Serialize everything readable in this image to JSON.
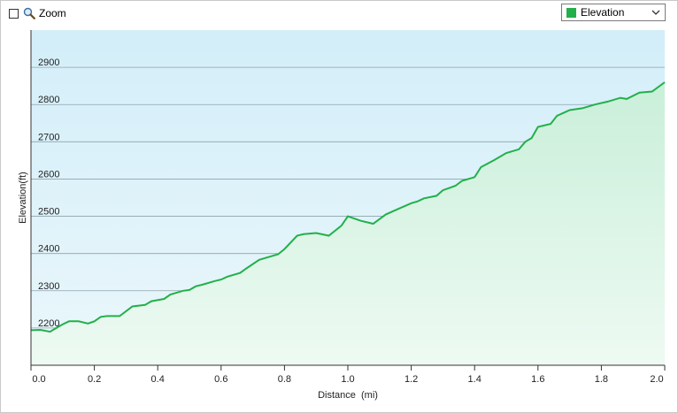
{
  "toolbar": {
    "zoom_label": "Zoom",
    "zoom_checked": false,
    "series_select_value": "Elevation",
    "series_color": "#22b04a"
  },
  "chart_data": {
    "type": "area",
    "xlabel": "Distance  (mi)",
    "ylabel": "Elevation(ft)",
    "xlim": [
      0.0,
      2.0
    ],
    "ylim": [
      2100,
      3000
    ],
    "x_ticks": [
      "0.0",
      "0.2",
      "0.4",
      "0.6",
      "0.8",
      "1.0",
      "1.2",
      "1.4",
      "1.6",
      "1.8",
      "2.0"
    ],
    "y_ticks": [
      "2200",
      "2300",
      "2400",
      "2500",
      "2600",
      "2700",
      "2800",
      "2900"
    ],
    "grid": "horizontal",
    "line_color": "#22b04a",
    "series": [
      {
        "name": "Elevation",
        "x": [
          0.0,
          0.03,
          0.06,
          0.08,
          0.1,
          0.12,
          0.15,
          0.18,
          0.2,
          0.22,
          0.24,
          0.28,
          0.32,
          0.36,
          0.38,
          0.42,
          0.44,
          0.48,
          0.5,
          0.52,
          0.54,
          0.58,
          0.6,
          0.62,
          0.66,
          0.68,
          0.72,
          0.74,
          0.78,
          0.8,
          0.84,
          0.86,
          0.9,
          0.94,
          0.98,
          1.0,
          1.04,
          1.08,
          1.12,
          1.16,
          1.2,
          1.22,
          1.24,
          1.28,
          1.3,
          1.34,
          1.36,
          1.4,
          1.42,
          1.46,
          1.5,
          1.54,
          1.56,
          1.58,
          1.6,
          1.64,
          1.66,
          1.7,
          1.74,
          1.78,
          1.82,
          1.86,
          1.88,
          1.92,
          1.96,
          2.0
        ],
        "values": [
          2194,
          2195,
          2190,
          2200,
          2210,
          2218,
          2218,
          2212,
          2218,
          2230,
          2232,
          2232,
          2258,
          2262,
          2272,
          2278,
          2290,
          2300,
          2302,
          2312,
          2316,
          2326,
          2330,
          2338,
          2348,
          2360,
          2383,
          2388,
          2398,
          2412,
          2448,
          2452,
          2455,
          2448,
          2475,
          2500,
          2488,
          2480,
          2505,
          2520,
          2535,
          2540,
          2548,
          2555,
          2570,
          2582,
          2595,
          2605,
          2632,
          2650,
          2670,
          2680,
          2700,
          2710,
          2740,
          2748,
          2770,
          2785,
          2790,
          2800,
          2808,
          2818,
          2815,
          2832,
          2835,
          2860
        ]
      }
    ]
  }
}
